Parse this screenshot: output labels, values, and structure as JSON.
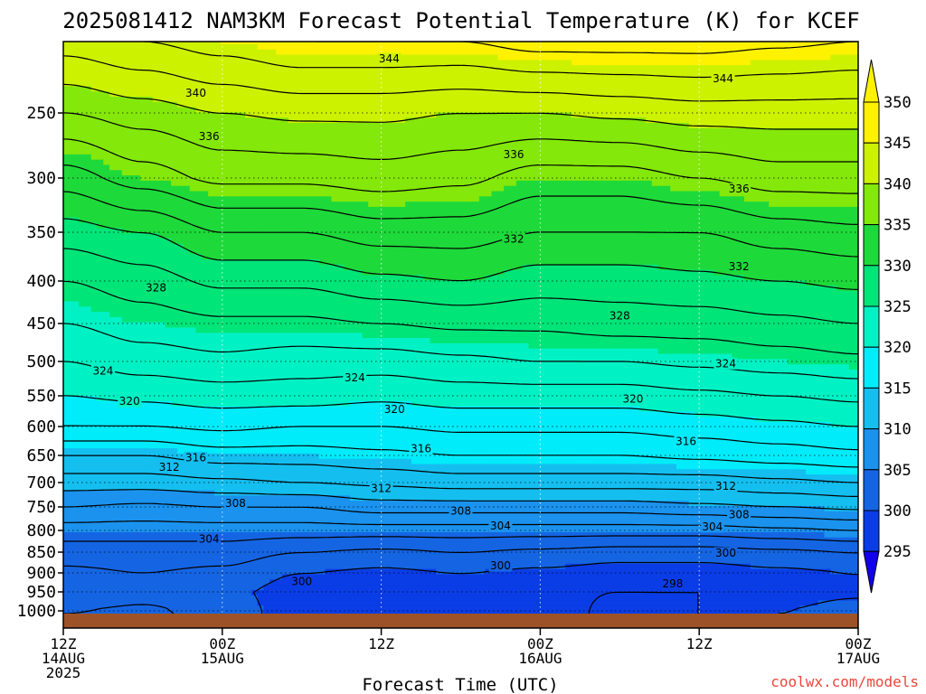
{
  "title": "2025081412 NAM3KM Forecast Potential Temperature (K) for KCEF",
  "xlabel": "Forecast Time (UTC)",
  "credit": "coolwx.com/models",
  "chart_data": {
    "type": "contour",
    "title": "2025081412 NAM3KM Forecast Potential Temperature (K) for KCEF",
    "xlabel": "Forecast Time (UTC)",
    "ylabel": "",
    "y_reversed": true,
    "ylim": [
      1020,
      200
    ],
    "y_ticks": [
      250,
      300,
      350,
      400,
      450,
      500,
      550,
      600,
      650,
      700,
      750,
      800,
      850,
      900,
      950,
      1000
    ],
    "x_ticks": [
      {
        "hour": 0,
        "lines": [
          "12Z",
          "14AUG",
          "2025"
        ]
      },
      {
        "hour": 12,
        "lines": [
          "00Z",
          "15AUG"
        ]
      },
      {
        "hour": 24,
        "lines": [
          "12Z"
        ]
      },
      {
        "hour": 36,
        "lines": [
          "00Z",
          "16AUG"
        ]
      },
      {
        "hour": 48,
        "lines": [
          "12Z"
        ]
      },
      {
        "hour": 60,
        "lines": [
          "00Z",
          "17AUG"
        ]
      }
    ],
    "colorbar": {
      "levels": [
        295,
        300,
        305,
        310,
        315,
        320,
        325,
        330,
        335,
        340,
        345,
        350
      ],
      "colors": [
        "#1200ec",
        "#0a3de6",
        "#1565e3",
        "#1a92ee",
        "#14bff0",
        "#00ecfa",
        "#00f2c4",
        "#00e578",
        "#1ed93a",
        "#84e80a",
        "#ccf200",
        "#fff200",
        "#fff200"
      ]
    },
    "contour_interval": 2,
    "contour_labels": [
      {
        "value": 344,
        "hour": 24.6,
        "p": 212
      },
      {
        "value": 344,
        "hour": 49.8,
        "p": 226
      },
      {
        "value": 340,
        "hour": 10.0,
        "p": 236
      },
      {
        "value": 336,
        "hour": 11.0,
        "p": 268
      },
      {
        "value": 336,
        "hour": 34.0,
        "p": 282
      },
      {
        "value": 336,
        "hour": 51.0,
        "p": 310
      },
      {
        "value": 332,
        "hour": 34.0,
        "p": 357
      },
      {
        "value": 332,
        "hour": 51.0,
        "p": 385
      },
      {
        "value": 328,
        "hour": 7.0,
        "p": 408
      },
      {
        "value": 328,
        "hour": 42.0,
        "p": 441
      },
      {
        "value": 324,
        "hour": 3.0,
        "p": 514
      },
      {
        "value": 324,
        "hour": 22.0,
        "p": 524
      },
      {
        "value": 324,
        "hour": 50.0,
        "p": 503
      },
      {
        "value": 320,
        "hour": 5.0,
        "p": 559
      },
      {
        "value": 320,
        "hour": 25.0,
        "p": 572
      },
      {
        "value": 320,
        "hour": 43.0,
        "p": 555
      },
      {
        "value": 316,
        "hour": 10.0,
        "p": 654
      },
      {
        "value": 316,
        "hour": 27.0,
        "p": 638
      },
      {
        "value": 316,
        "hour": 47.0,
        "p": 626
      },
      {
        "value": 312,
        "hour": 8.0,
        "p": 672
      },
      {
        "value": 312,
        "hour": 24.0,
        "p": 712
      },
      {
        "value": 312,
        "hour": 50.0,
        "p": 707
      },
      {
        "value": 308,
        "hour": 13.0,
        "p": 743
      },
      {
        "value": 308,
        "hour": 30.0,
        "p": 759
      },
      {
        "value": 308,
        "hour": 51.0,
        "p": 766
      },
      {
        "value": 304,
        "hour": 11.0,
        "p": 820
      },
      {
        "value": 304,
        "hour": 33.0,
        "p": 790
      },
      {
        "value": 304,
        "hour": 49.0,
        "p": 792
      },
      {
        "value": 300,
        "hour": 18.0,
        "p": 923
      },
      {
        "value": 300,
        "hour": 33.0,
        "p": 883
      },
      {
        "value": 300,
        "hour": 50.0,
        "p": 852
      },
      {
        "value": 298,
        "hour": 46.0,
        "p": 929
      }
    ],
    "profiles": [
      {
        "hour": 0,
        "vals": [
          [
            200,
            343
          ],
          [
            250,
            338
          ],
          [
            300,
            333
          ],
          [
            350,
            329
          ],
          [
            400,
            326
          ],
          [
            450,
            324
          ],
          [
            500,
            322
          ],
          [
            550,
            320
          ],
          [
            600,
            318
          ],
          [
            650,
            314
          ],
          [
            700,
            311
          ],
          [
            750,
            308
          ],
          [
            800,
            305
          ],
          [
            850,
            303
          ],
          [
            900,
            301.5
          ],
          [
            950,
            300
          ],
          [
            1000,
            302
          ]
        ]
      },
      {
        "hour": 6,
        "vals": [
          [
            200,
            344
          ],
          [
            250,
            339
          ],
          [
            300,
            335
          ],
          [
            350,
            330
          ],
          [
            400,
            327
          ],
          [
            450,
            325
          ],
          [
            500,
            323
          ],
          [
            550,
            320.5
          ],
          [
            600,
            318
          ],
          [
            650,
            314
          ],
          [
            700,
            311
          ],
          [
            750,
            307.5
          ],
          [
            800,
            305
          ],
          [
            850,
            303
          ],
          [
            900,
            302
          ],
          [
            950,
            301
          ],
          [
            1000,
            302.5
          ]
        ]
      },
      {
        "hour": 12,
        "vals": [
          [
            200,
            345
          ],
          [
            250,
            340
          ],
          [
            300,
            336.5
          ],
          [
            350,
            332
          ],
          [
            400,
            328.5
          ],
          [
            450,
            325.5
          ],
          [
            500,
            323.5
          ],
          [
            550,
            321
          ],
          [
            600,
            318.5
          ],
          [
            650,
            315
          ],
          [
            700,
            311.5
          ],
          [
            750,
            308
          ],
          [
            800,
            305
          ],
          [
            850,
            303
          ],
          [
            900,
            301.5
          ],
          [
            950,
            300.5
          ],
          [
            1000,
            301
          ]
        ]
      },
      {
        "hour": 18,
        "vals": [
          [
            200,
            346
          ],
          [
            250,
            340.5
          ],
          [
            300,
            336.5
          ],
          [
            350,
            332
          ],
          [
            400,
            328.5
          ],
          [
            450,
            325.5
          ],
          [
            500,
            323
          ],
          [
            550,
            321
          ],
          [
            600,
            318
          ],
          [
            650,
            315
          ],
          [
            700,
            312
          ],
          [
            750,
            308
          ],
          [
            800,
            305
          ],
          [
            850,
            302
          ],
          [
            900,
            300
          ],
          [
            950,
            299
          ],
          [
            1000,
            299
          ]
        ]
      },
      {
        "hour": 24,
        "vals": [
          [
            200,
            346
          ],
          [
            250,
            340.5
          ],
          [
            300,
            337
          ],
          [
            350,
            333
          ],
          [
            400,
            329.5
          ],
          [
            450,
            326
          ],
          [
            500,
            323
          ],
          [
            550,
            320.5
          ],
          [
            600,
            318
          ],
          [
            650,
            315.5
          ],
          [
            700,
            312.5
          ],
          [
            750,
            309
          ],
          [
            800,
            305
          ],
          [
            850,
            301.5
          ],
          [
            900,
            299.5
          ],
          [
            950,
            298.5
          ],
          [
            1000,
            298
          ]
        ]
      },
      {
        "hour": 30,
        "vals": [
          [
            200,
            346
          ],
          [
            250,
            340
          ],
          [
            300,
            336.5
          ],
          [
            350,
            333
          ],
          [
            400,
            330
          ],
          [
            450,
            326.5
          ],
          [
            500,
            323.5
          ],
          [
            550,
            321
          ],
          [
            600,
            318.5
          ],
          [
            650,
            316
          ],
          [
            700,
            313
          ],
          [
            750,
            309
          ],
          [
            800,
            305
          ],
          [
            850,
            302
          ],
          [
            900,
            300
          ],
          [
            950,
            299
          ],
          [
            1000,
            300
          ]
        ]
      },
      {
        "hour": 36,
        "vals": [
          [
            200,
            347
          ],
          [
            250,
            340
          ],
          [
            300,
            335
          ],
          [
            350,
            332
          ],
          [
            400,
            329
          ],
          [
            450,
            326.5
          ],
          [
            500,
            324
          ],
          [
            550,
            321
          ],
          [
            600,
            318.5
          ],
          [
            650,
            316
          ],
          [
            700,
            313
          ],
          [
            750,
            309
          ],
          [
            800,
            305
          ],
          [
            850,
            301.5
          ],
          [
            900,
            299.5
          ],
          [
            950,
            298.5
          ],
          [
            1000,
            299
          ]
        ]
      },
      {
        "hour": 42,
        "vals": [
          [
            200,
            347
          ],
          [
            250,
            340.5
          ],
          [
            300,
            335
          ],
          [
            350,
            332
          ],
          [
            400,
            329
          ],
          [
            450,
            327
          ],
          [
            500,
            324
          ],
          [
            550,
            321
          ],
          [
            600,
            318.5
          ],
          [
            650,
            316
          ],
          [
            700,
            313
          ],
          [
            750,
            309
          ],
          [
            800,
            305
          ],
          [
            850,
            301
          ],
          [
            900,
            299
          ],
          [
            950,
            298
          ],
          [
            1000,
            297.5
          ]
        ]
      },
      {
        "hour": 48,
        "vals": [
          [
            200,
            347
          ],
          [
            250,
            341
          ],
          [
            300,
            336
          ],
          [
            350,
            332
          ],
          [
            400,
            329.5
          ],
          [
            450,
            327
          ],
          [
            500,
            324.5
          ],
          [
            550,
            321.5
          ],
          [
            600,
            319
          ],
          [
            650,
            316.5
          ],
          [
            700,
            313
          ],
          [
            750,
            309.5
          ],
          [
            800,
            305
          ],
          [
            850,
            301
          ],
          [
            900,
            299
          ],
          [
            950,
            298
          ],
          [
            1000,
            298
          ]
        ]
      },
      {
        "hour": 54,
        "vals": [
          [
            200,
            346.5
          ],
          [
            250,
            341
          ],
          [
            300,
            337
          ],
          [
            350,
            333
          ],
          [
            400,
            330
          ],
          [
            450,
            327.5
          ],
          [
            500,
            325
          ],
          [
            550,
            322
          ],
          [
            600,
            319.5
          ],
          [
            650,
            317
          ],
          [
            700,
            313.5
          ],
          [
            750,
            310
          ],
          [
            800,
            305.5
          ],
          [
            850,
            301.5
          ],
          [
            900,
            299.5
          ],
          [
            950,
            299
          ],
          [
            1000,
            300
          ]
        ]
      },
      {
        "hour": 60,
        "vals": [
          [
            200,
            346
          ],
          [
            250,
            341
          ],
          [
            300,
            337
          ],
          [
            350,
            333.5
          ],
          [
            400,
            330.5
          ],
          [
            450,
            328
          ],
          [
            500,
            325.5
          ],
          [
            550,
            322.5
          ],
          [
            600,
            320
          ],
          [
            650,
            317.5
          ],
          [
            700,
            314
          ],
          [
            750,
            310.5
          ],
          [
            800,
            306
          ],
          [
            850,
            302
          ],
          [
            900,
            300
          ],
          [
            950,
            299.5
          ],
          [
            1000,
            301
          ]
        ]
      }
    ]
  }
}
